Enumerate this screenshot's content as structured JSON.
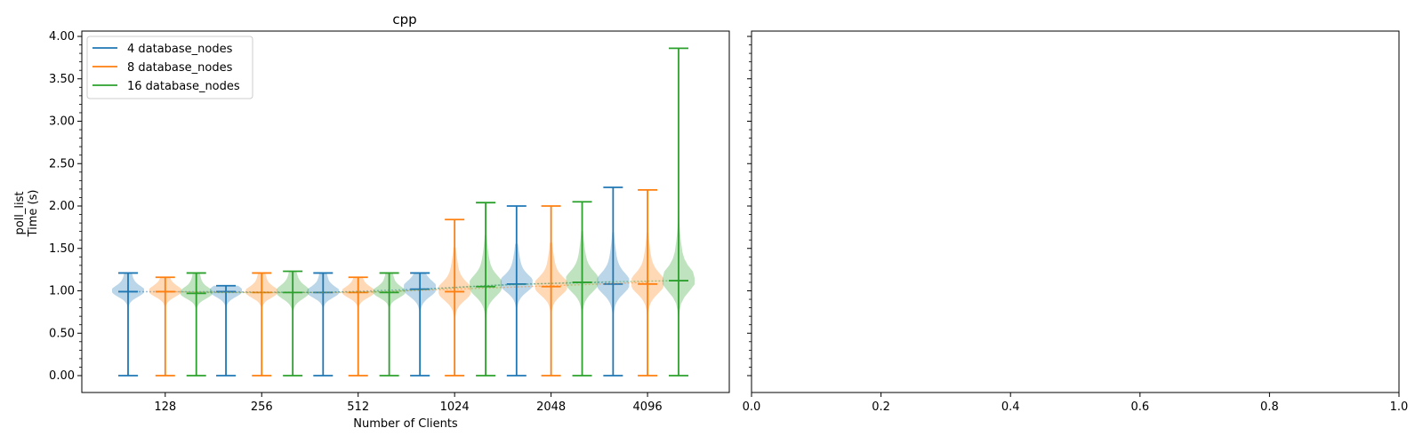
{
  "chart_data": [
    {
      "type": "violin",
      "title": "cpp",
      "xlabel": "Number of Clients",
      "ylabel_line1": "poll_list",
      "ylabel_line2": "Time (s)",
      "categories": [
        "128",
        "256",
        "512",
        "1024",
        "2048",
        "4096"
      ],
      "ylim": [
        -0.2,
        4.05
      ],
      "yticks": [
        "0.00",
        "0.50",
        "1.00",
        "1.50",
        "2.00",
        "2.50",
        "3.00",
        "3.50",
        "4.00"
      ],
      "legend_position": "upper-left",
      "grid": false,
      "series": [
        {
          "name": "4 database_nodes",
          "color": "#1f77b4",
          "violins": [
            {
              "x": 98,
              "min": 0.0,
              "max": 1.21,
              "median": 0.99,
              "mean": 0.99,
              "spread": 0.6
            },
            {
              "x": 198,
              "min": 0.0,
              "max": 1.06,
              "median": 0.99,
              "mean": 0.99,
              "spread": 0.6
            },
            {
              "x": 398,
              "min": 0.0,
              "max": 1.21,
              "median": 0.98,
              "mean": 0.98,
              "spread": 0.6
            },
            {
              "x": 798,
              "min": 0.0,
              "max": 1.21,
              "median": 1.02,
              "mean": 1.02,
              "spread": 0.8
            },
            {
              "x": 1598,
              "min": 0.0,
              "max": 2.0,
              "median": 1.08,
              "mean": 1.08,
              "spread": 0.85
            },
            {
              "x": 3198,
              "min": 0.0,
              "max": 2.22,
              "median": 1.08,
              "mean": 1.1,
              "spread": 1.0
            }
          ]
        },
        {
          "name": "8 database_nodes",
          "color": "#ff7f0e",
          "violins": [
            {
              "x": 128,
              "min": 0.0,
              "max": 1.16,
              "median": 0.99,
              "mean": 0.99,
              "spread": 0.6
            },
            {
              "x": 256,
              "min": 0.0,
              "max": 1.21,
              "median": 0.98,
              "mean": 0.98,
              "spread": 0.6
            },
            {
              "x": 512,
              "min": 0.0,
              "max": 1.16,
              "median": 0.98,
              "mean": 0.98,
              "spread": 0.6
            },
            {
              "x": 1024,
              "min": 0.0,
              "max": 1.84,
              "median": 0.99,
              "mean": 1.02,
              "spread": 0.9
            },
            {
              "x": 2048,
              "min": 0.0,
              "max": 2.0,
              "median": 1.05,
              "mean": 1.06,
              "spread": 0.9
            },
            {
              "x": 4096,
              "min": 0.0,
              "max": 2.19,
              "median": 1.08,
              "mean": 1.1,
              "spread": 1.0
            }
          ]
        },
        {
          "name": "16 database_nodes",
          "color": "#2ca02c",
          "violins": [
            {
              "x": 160,
              "min": 0.0,
              "max": 1.21,
              "median": 0.97,
              "mean": 0.98,
              "spread": 0.6
            },
            {
              "x": 320,
              "min": 0.0,
              "max": 1.23,
              "median": 0.98,
              "mean": 0.98,
              "spread": 0.7
            },
            {
              "x": 640,
              "min": 0.0,
              "max": 1.21,
              "median": 0.98,
              "mean": 0.99,
              "spread": 0.6
            },
            {
              "x": 1280,
              "min": 0.0,
              "max": 2.04,
              "median": 1.05,
              "mean": 1.06,
              "spread": 1.0
            },
            {
              "x": 2560,
              "min": 0.0,
              "max": 2.05,
              "median": 1.1,
              "mean": 1.1,
              "spread": 1.0
            },
            {
              "x": 5120,
              "min": 0.0,
              "max": 3.86,
              "median": 1.12,
              "mean": 1.12,
              "spread": 1.1
            }
          ]
        }
      ]
    },
    {
      "type": "empty",
      "xlim": [
        0.0,
        1.0
      ],
      "xticks": [
        "0.0",
        "0.2",
        "0.4",
        "0.6",
        "0.8",
        "1.0"
      ]
    }
  ]
}
